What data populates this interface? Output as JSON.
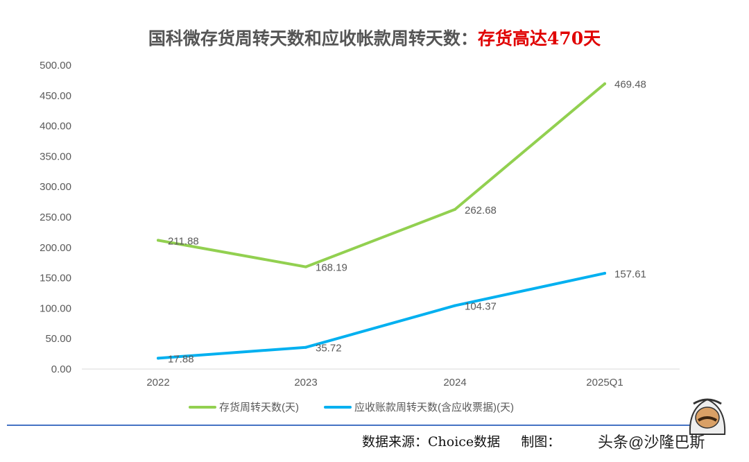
{
  "title": {
    "main": "国科微存货周转天数和应收帐款周转天数：",
    "highlight": "存货高达470天"
  },
  "chart_data": {
    "type": "line",
    "title": "国科微存货周转天数和应收帐款周转天数：存货高达470天",
    "categories": [
      "2022",
      "2023",
      "2024",
      "2025Q1"
    ],
    "ylim": [
      0,
      500
    ],
    "yticks": [
      "0.00",
      "50.00",
      "100.00",
      "150.00",
      "200.00",
      "250.00",
      "300.00",
      "350.00",
      "400.00",
      "450.00",
      "500.00"
    ],
    "grid": false,
    "legend": "bottom",
    "series": [
      {
        "name": "存货周转天数(天)",
        "color": "#92d050",
        "values": [
          211.88,
          168.19,
          262.68,
          469.48
        ],
        "labels": [
          "211.88",
          "168.19",
          "262.68",
          "469.48"
        ]
      },
      {
        "name": "应收账款周转天数(含应收票据)(天)",
        "color": "#00b0f0",
        "values": [
          17.88,
          35.72,
          104.37,
          157.61
        ],
        "labels": [
          "17.88",
          "35.72",
          "104.37",
          "157.61"
        ]
      }
    ]
  },
  "footer": {
    "source": "数据来源：Choice数据",
    "credit": "制图：",
    "watermark": "头条@沙隆巴斯"
  },
  "colors": {
    "rule": "#4472c4",
    "highlight": "#e00000"
  }
}
